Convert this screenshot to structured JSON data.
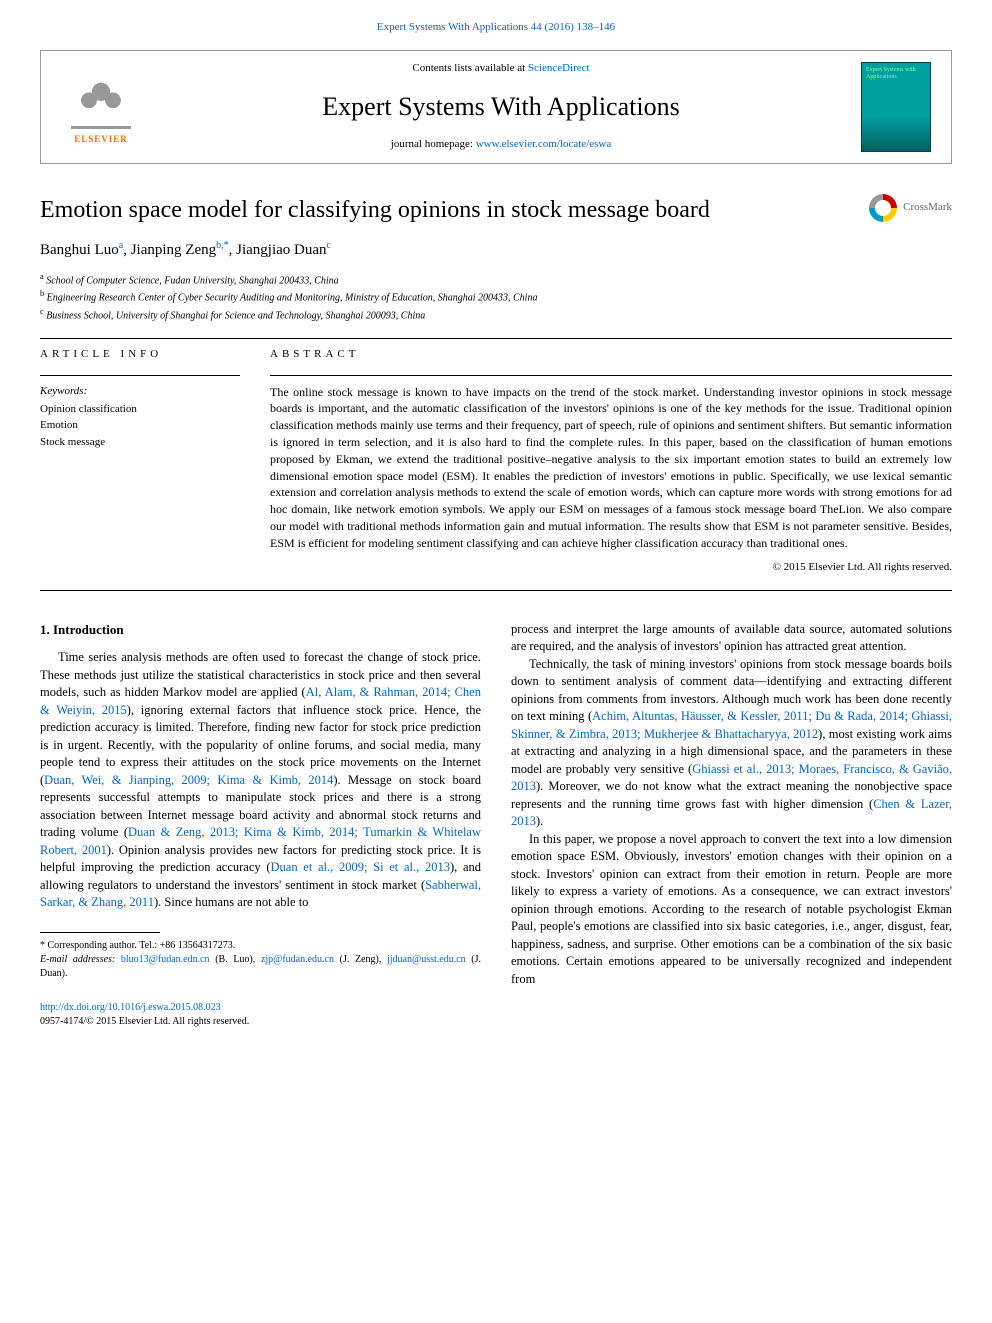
{
  "top_citation": "Expert Systems With Applications 44 (2016) 138–146",
  "header": {
    "contents_prefix": "Contents lists available at ",
    "contents_link": "ScienceDirect",
    "journal_name": "Expert Systems With Applications",
    "homepage_prefix": "journal homepage: ",
    "homepage_link": "www.elsevier.com/locate/eswa",
    "elsevier_label": "ELSEVIER",
    "cover_text": "Expert Systems with Applications"
  },
  "crossmark_label": "CrossMark",
  "title": "Emotion space model for classifying opinions in stock message board",
  "authors_html": "Banghui Luo",
  "authors": [
    {
      "name": "Banghui Luo",
      "sup": "a"
    },
    {
      "name": "Jianping Zeng",
      "sup": "b,*"
    },
    {
      "name": "Jiangjiao Duan",
      "sup": "c"
    }
  ],
  "affiliations": [
    {
      "sup": "a",
      "text": "School of Computer Science, Fudan University, Shanghai 200433, China"
    },
    {
      "sup": "b",
      "text": "Engineering Research Center of Cyber Security Auditing and Monitoring, Ministry of Education, Shanghai 200433, China"
    },
    {
      "sup": "c",
      "text": "Business School, University of Shanghai for Science and Technology, Shanghai 200093, China"
    }
  ],
  "info_heading": "ARTICLE INFO",
  "abstract_heading": "ABSTRACT",
  "keywords_label": "Keywords:",
  "keywords": [
    "Opinion classification",
    "Emotion",
    "Stock message"
  ],
  "abstract": "The online stock message is known to have impacts on the trend of the stock market. Understanding investor opinions in stock message boards is important, and the automatic classification of the investors' opinions is one of the key methods for the issue. Traditional opinion classification methods mainly use terms and their frequency, part of speech, rule of opinions and sentiment shifters. But semantic information is ignored in term selection, and it is also hard to find the complete rules. In this paper, based on the classification of human emotions proposed by Ekman, we extend the traditional positive–negative analysis to the six important emotion states to build an extremely low dimensional emotion space model (ESM). It enables the prediction of investors' emotions in public. Specifically, we use lexical semantic extension and correlation analysis methods to extend the scale of emotion words, which can capture more words with strong emotions for ad hoc domain, like network emotion symbols. We apply our ESM on messages of a famous stock message board TheLion. We also compare our model with traditional methods information gain and mutual information. The results show that ESM is not parameter sensitive. Besides, ESM is efficient for modeling sentiment classifying and can achieve higher classification accuracy than traditional ones.",
  "copyright": "© 2015 Elsevier Ltd. All rights reserved.",
  "section1_heading": "1. Introduction",
  "para1_pre": "Time series analysis methods are often used to forecast the change of stock price. These methods just utilize the statistical characteristics in stock price and then several models, such as hidden Markov model are applied (",
  "para1_cite1": "Al, Alam, & Rahman, 2014; Chen & Weiyin, 2015",
  "para1_mid1": "), ignoring external factors that influence stock price. Hence, the prediction accuracy is limited. Therefore, finding new factor for stock price prediction is in urgent. Recently, with the popularity of online forums, and social media, many people tend to express their attitudes on the stock price movements on the Internet (",
  "para1_cite2": "Duan, Wei, & Jianping, 2009; Kima & Kimb, 2014",
  "para1_mid2": "). Message on stock board represents successful attempts to manipulate stock prices and there is a strong association between Internet message board activity and abnormal stock returns and trading volume (",
  "para1_cite3": "Duan & Zeng, 2013; Kima & Kimb, 2014; Tumarkin & Whitelaw Robert, 2001",
  "para1_mid3": "). Opinion analysis provides new factors for predicting stock price. It is helpful improving the prediction accuracy (",
  "para1_cite4": "Duan et al., 2009; Si et al., 2013",
  "para1_mid4": "), and allowing regulators to understand the investors' sentiment in stock market (",
  "para1_cite5": "Sabherwal, Sarkar, & Zhang, 2011",
  "para1_end": "). Since humans are not able to ",
  "para1b": "process and interpret the large amounts of available data source, automated solutions are required, and the analysis of investors' opinion has attracted great attention.",
  "para2_pre": "Technically, the task of mining investors' opinions from stock message boards boils down to sentiment analysis of comment data—identifying and extracting different opinions from comments from investors. Although much work has been done recently on text mining (",
  "para2_cite1": "Achim, Altuntas, Häusser, & Kessler, 2011; Du & Rada, 2014; Ghiassi, Skinner, & Zimbra, 2013; Mukherjee & Bhattacharyya, 2012",
  "para2_mid1": "), most existing work aims at extracting and analyzing in a high dimensional space, and the parameters in these model are probably very sensitive (",
  "para2_cite2": "Ghiassi et al., 2013; Moraes, Francisco, & Gavião, 2013",
  "para2_mid2": "). Moreover, we do not know what the extract meaning the nonobjective space represents and the running time grows fast with higher dimension (",
  "para2_cite3": "Chen & Lazer, 2013",
  "para2_end": ").",
  "para3": "In this paper, we propose a novel approach to convert the text into a low dimension emotion space ESM. Obviously, investors' emotion changes with their opinion on a stock. Investors' opinion can extract from their emotion in return. People are more likely to express a variety of emotions. As a consequence, we can extract investors' opinion through emotions. According to the research of notable psychologist Ekman Paul, people's emotions are classified into six basic categories, i.e., anger, disgust, fear, happiness, sadness, and surprise. Other emotions can be a combination of the six basic emotions. Certain emotions appeared to be universally recognized and independent from ",
  "footnotes": {
    "corr": "Corresponding author. Tel.: +86 13564317273.",
    "email_label": "E-mail addresses:",
    "emails": [
      {
        "addr": "bluo13@fudan.edn.cn",
        "who": "(B. Luo)"
      },
      {
        "addr": "zjp@fudan.edu.cn",
        "who": "(J. Zeng)"
      },
      {
        "addr": "jjduan@usst.edu.cn",
        "who": "(J. Duan)."
      }
    ]
  },
  "doi": {
    "link": "http://dx.doi.org/10.1016/j.eswa.2015.08.023",
    "issn_line": "0957-4174/© 2015 Elsevier Ltd. All rights reserved."
  },
  "colors": {
    "link": "#0066cc",
    "elsevier_orange": "#ff6600",
    "cover_teal": "#00a0a0"
  }
}
